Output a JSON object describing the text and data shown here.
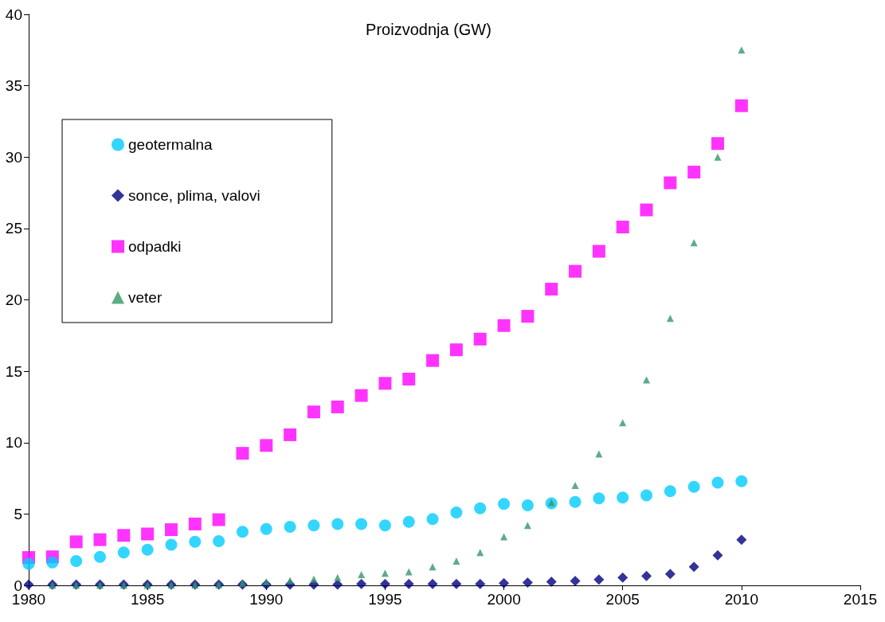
{
  "chart_data": {
    "type": "scatter",
    "title": "Proizvodnja (GW)",
    "x": [
      1980,
      1981,
      1982,
      1983,
      1984,
      1985,
      1986,
      1987,
      1988,
      1989,
      1990,
      1991,
      1992,
      1993,
      1994,
      1995,
      1996,
      1997,
      1998,
      1999,
      2000,
      2001,
      2002,
      2003,
      2004,
      2005,
      2006,
      2007,
      2008,
      2009,
      2010
    ],
    "xlim": [
      1980,
      2015
    ],
    "xticks": [
      1980,
      1985,
      1990,
      1995,
      2000,
      2005,
      2010,
      2015
    ],
    "ylim": [
      0,
      40
    ],
    "yticks": [
      0,
      5,
      10,
      15,
      20,
      25,
      30,
      35,
      40
    ],
    "grid": false,
    "legend": "top left",
    "series": [
      {
        "name": "geotermalna",
        "color": "#00ccff",
        "marker": "circle",
        "values": [
          1.5,
          1.6,
          1.7,
          2.0,
          2.3,
          2.5,
          2.85,
          3.05,
          3.1,
          3.75,
          3.95,
          4.1,
          4.2,
          4.3,
          4.3,
          4.2,
          4.45,
          4.65,
          5.1,
          5.4,
          5.7,
          5.6,
          5.75,
          5.85,
          6.1,
          6.15,
          6.3,
          6.6,
          6.9,
          7.2,
          7.3
        ]
      },
      {
        "name": "sonce, plima, valovi",
        "color": "#000080",
        "marker": "diamond",
        "values": [
          0.05,
          0.05,
          0.05,
          0.05,
          0.05,
          0.05,
          0.05,
          0.05,
          0.05,
          0.05,
          0.05,
          0.05,
          0.05,
          0.05,
          0.1,
          0.1,
          0.1,
          0.1,
          0.1,
          0.1,
          0.15,
          0.2,
          0.25,
          0.3,
          0.4,
          0.55,
          0.65,
          0.8,
          1.3,
          2.1,
          3.2
        ]
      },
      {
        "name": "odpadki",
        "color": "#ff00ff",
        "marker": "square",
        "values": [
          1.95,
          2.0,
          3.05,
          3.2,
          3.5,
          3.6,
          3.9,
          4.3,
          4.6,
          9.25,
          9.8,
          10.55,
          12.15,
          12.5,
          13.3,
          14.15,
          14.45,
          15.75,
          16.5,
          17.25,
          18.2,
          18.85,
          20.75,
          22.0,
          23.4,
          25.1,
          26.3,
          28.2,
          28.95,
          30.95,
          33.6
        ]
      },
      {
        "name": "veter",
        "color": "#339966",
        "marker": "triangle",
        "values": [
          null,
          0.02,
          0.02,
          0.02,
          0.02,
          0.02,
          0.03,
          0.03,
          0.05,
          0.15,
          0.25,
          0.35,
          0.45,
          0.55,
          0.75,
          0.85,
          0.95,
          1.3,
          1.7,
          2.3,
          3.4,
          4.2,
          5.8,
          7.0,
          9.2,
          11.4,
          14.4,
          18.7,
          24.0,
          30.0,
          37.5
        ]
      }
    ]
  }
}
